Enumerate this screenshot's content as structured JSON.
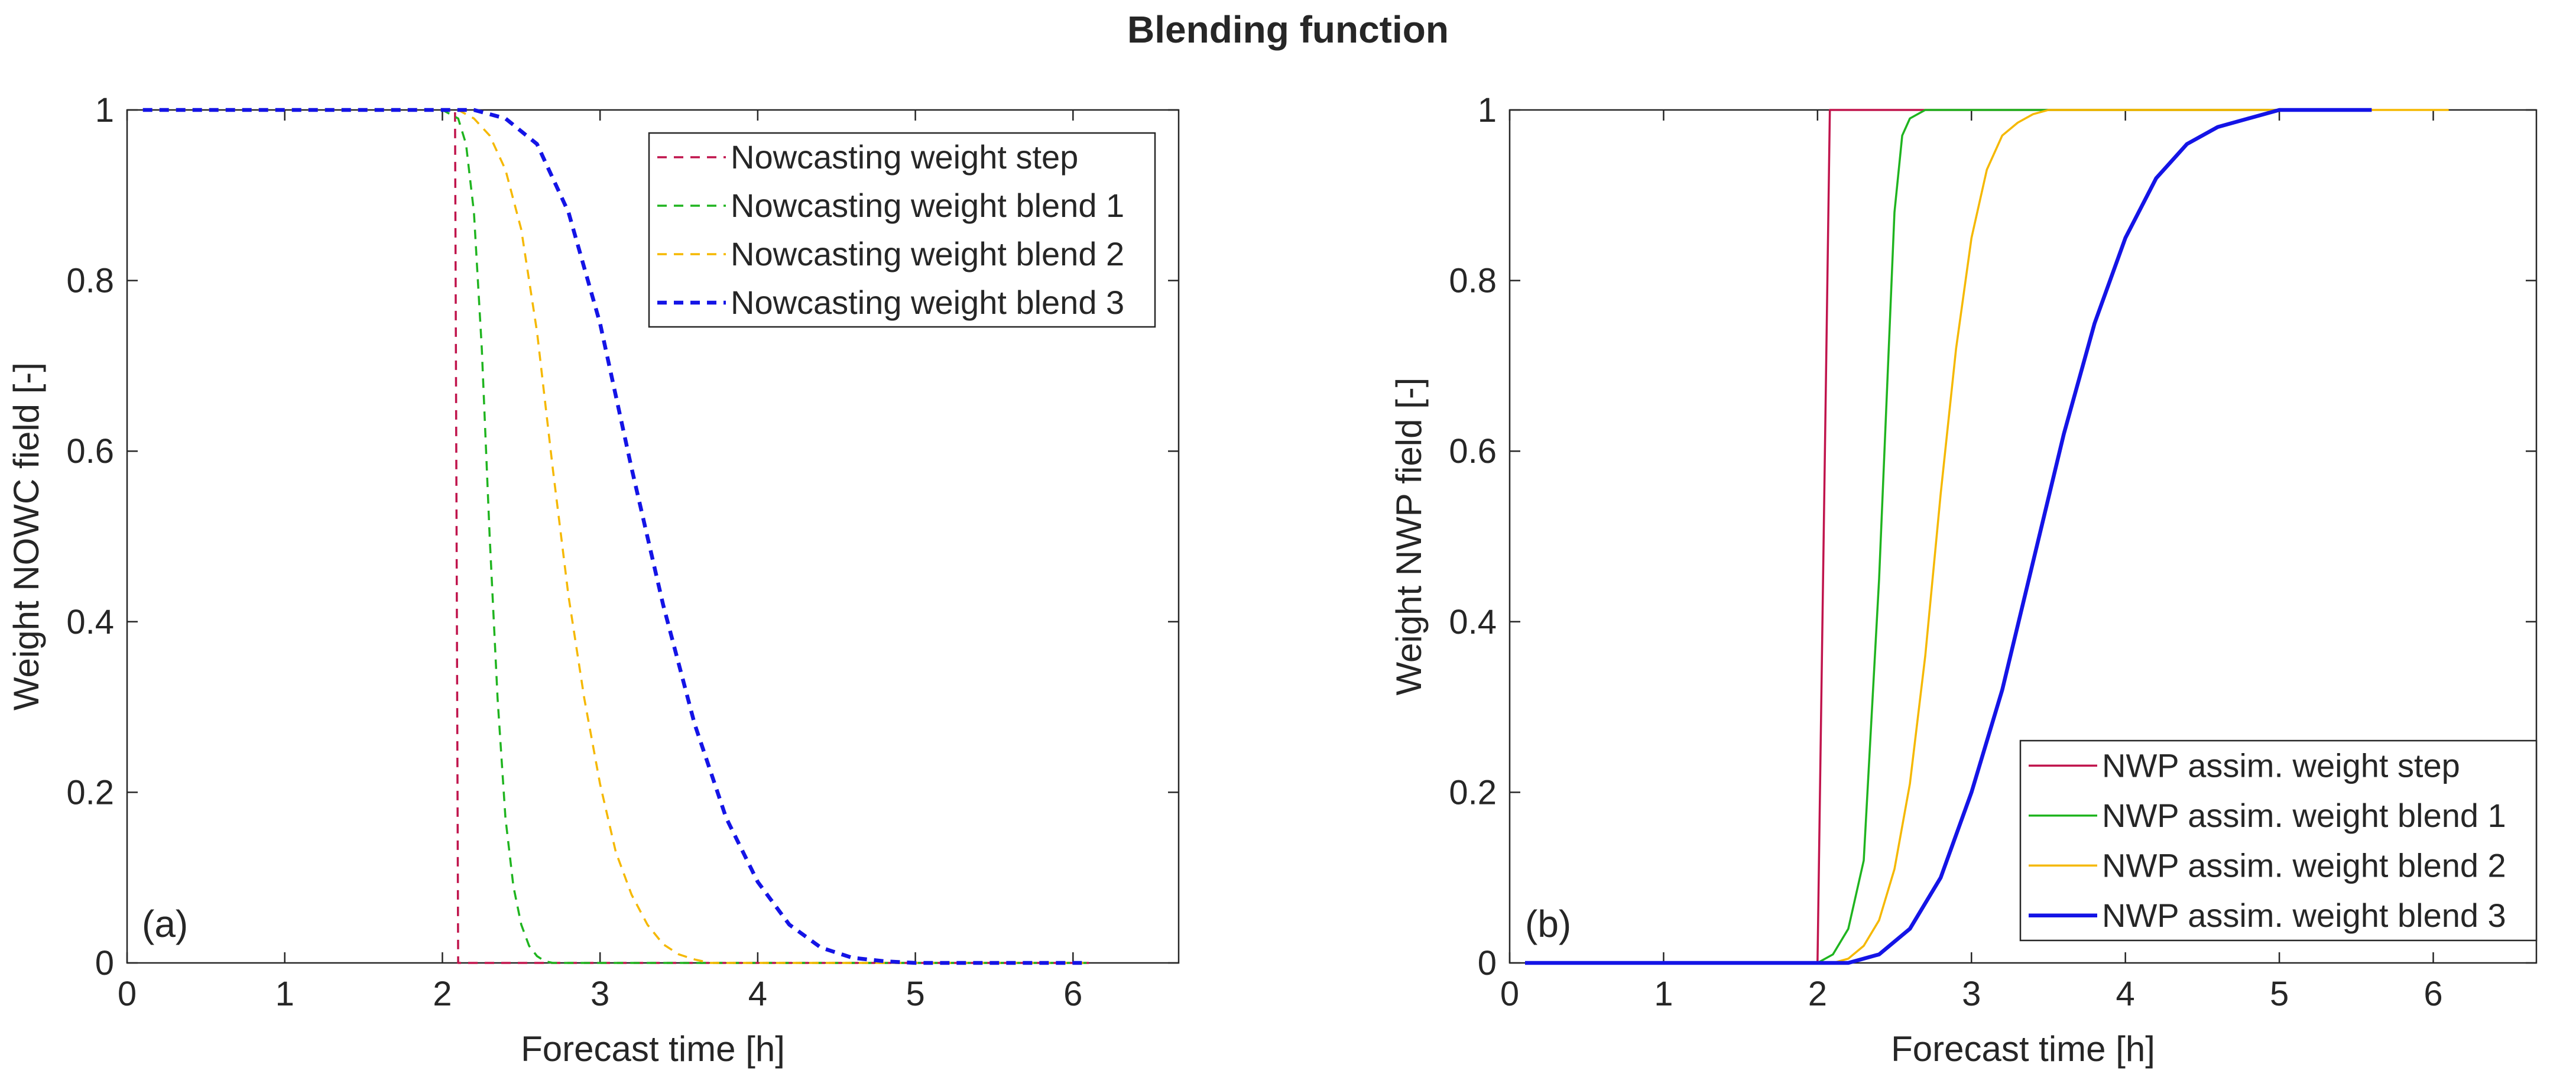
{
  "figure": {
    "title": "Blending function"
  },
  "chart_data": [
    {
      "type": "line",
      "panel_label": "(a)",
      "xlabel": "Forecast  time [h]",
      "ylabel": "Weight NOWC field [-]",
      "xlim": [
        0,
        6.67
      ],
      "ylim": [
        0,
        1
      ],
      "xticks": [
        0,
        1,
        2,
        3,
        4,
        5,
        6
      ],
      "yticks": [
        0,
        0.2,
        0.4,
        0.6,
        0.8,
        1
      ],
      "xtick_labels": [
        "0",
        "1",
        "2",
        "3",
        "4",
        "5",
        "6"
      ],
      "ytick_labels": [
        "0",
        "0.2",
        "0.4",
        "0.6",
        "0.8",
        "1"
      ],
      "grid": false,
      "legend_position": "top-right",
      "series": [
        {
          "name": "Nowcasting weight step",
          "color": "#c0144c",
          "dash": "dashed",
          "width": "thin",
          "x": [
            0.1,
            2.0,
            2.08,
            2.1,
            6.1
          ],
          "y": [
            1,
            1,
            1,
            0,
            0
          ]
        },
        {
          "name": "Nowcasting weight blend 1",
          "color": "#1fb41f",
          "dash": "dashed",
          "width": "thin",
          "x": [
            0.1,
            2.0,
            2.1,
            2.15,
            2.2,
            2.25,
            2.3,
            2.35,
            2.4,
            2.45,
            2.5,
            2.55,
            2.6,
            2.65,
            2.7,
            6.1
          ],
          "y": [
            1,
            1,
            0.99,
            0.96,
            0.88,
            0.72,
            0.5,
            0.31,
            0.17,
            0.09,
            0.045,
            0.02,
            0.008,
            0.002,
            0,
            0
          ]
        },
        {
          "name": "Nowcasting weight blend 2",
          "color": "#f5b800",
          "dash": "dashed",
          "width": "thin",
          "x": [
            0.1,
            2.0,
            2.1,
            2.2,
            2.3,
            2.4,
            2.5,
            2.6,
            2.7,
            2.8,
            2.9,
            3.0,
            3.1,
            3.2,
            3.3,
            3.4,
            3.5,
            3.6,
            3.7,
            6.1
          ],
          "y": [
            1,
            1,
            1,
            0.99,
            0.97,
            0.93,
            0.86,
            0.74,
            0.58,
            0.43,
            0.31,
            0.21,
            0.13,
            0.08,
            0.045,
            0.022,
            0.01,
            0.004,
            0,
            0
          ]
        },
        {
          "name": "Nowcasting weight blend 3",
          "color": "#1414e6",
          "dash": "dashed",
          "width": "thick",
          "x": [
            0.1,
            2.0,
            2.2,
            2.4,
            2.6,
            2.8,
            3.0,
            3.2,
            3.4,
            3.6,
            3.8,
            4.0,
            4.2,
            4.4,
            4.6,
            4.8,
            5.0,
            6.1
          ],
          "y": [
            1,
            1,
            1,
            0.99,
            0.96,
            0.88,
            0.75,
            0.58,
            0.42,
            0.28,
            0.17,
            0.095,
            0.045,
            0.018,
            0.006,
            0.002,
            0,
            0
          ]
        }
      ]
    },
    {
      "type": "line",
      "panel_label": "(b)",
      "xlabel": "Forecast  time [h]",
      "ylabel": "Weight NWP field [-]",
      "xlim": [
        0,
        6.67
      ],
      "ylim": [
        0,
        1
      ],
      "xticks": [
        0,
        1,
        2,
        3,
        4,
        5,
        6
      ],
      "yticks": [
        0,
        0.2,
        0.4,
        0.6,
        0.8,
        1
      ],
      "xtick_labels": [
        "0",
        "1",
        "2",
        "3",
        "4",
        "5",
        "6"
      ],
      "ytick_labels": [
        "0",
        "0.2",
        "0.4",
        "0.6",
        "0.8",
        "1"
      ],
      "grid": false,
      "legend_position": "bottom-right",
      "series": [
        {
          "name": "NWP assim. weight step",
          "color": "#c0144c",
          "dash": "solid",
          "width": "thin",
          "x": [
            0.1,
            2.0,
            2.08,
            5.6
          ],
          "y": [
            0,
            0,
            1,
            1
          ]
        },
        {
          "name": "NWP assim. weight blend 1",
          "color": "#1fb41f",
          "dash": "solid",
          "width": "thin",
          "x": [
            0.1,
            2.0,
            2.1,
            2.2,
            2.3,
            2.4,
            2.5,
            2.55,
            2.6,
            2.7,
            2.8,
            5.6
          ],
          "y": [
            0,
            0,
            0.01,
            0.04,
            0.12,
            0.45,
            0.88,
            0.97,
            0.99,
            1,
            1,
            1
          ]
        },
        {
          "name": "NWP assim. weight blend 2",
          "color": "#f5b800",
          "dash": "solid",
          "width": "thin",
          "x": [
            0.1,
            2.0,
            2.1,
            2.2,
            2.3,
            2.4,
            2.5,
            2.6,
            2.7,
            2.8,
            2.9,
            3.0,
            3.1,
            3.2,
            3.3,
            3.4,
            3.5,
            3.6,
            3.7,
            6.1
          ],
          "y": [
            0,
            0,
            0,
            0.005,
            0.02,
            0.05,
            0.11,
            0.21,
            0.36,
            0.55,
            0.72,
            0.85,
            0.93,
            0.97,
            0.985,
            0.995,
            1,
            1,
            1,
            1
          ]
        },
        {
          "name": "NWP assim. weight blend 3",
          "color": "#1414e6",
          "dash": "solid",
          "width": "thick",
          "x": [
            0.1,
            2.0,
            2.2,
            2.4,
            2.6,
            2.8,
            3.0,
            3.2,
            3.4,
            3.6,
            3.8,
            4.0,
            4.2,
            4.4,
            4.6,
            4.8,
            5.0,
            5.2,
            5.6
          ],
          "y": [
            0,
            0,
            0,
            0.01,
            0.04,
            0.1,
            0.2,
            0.32,
            0.47,
            0.62,
            0.75,
            0.85,
            0.92,
            0.96,
            0.98,
            0.99,
            1,
            1,
            1
          ]
        }
      ]
    }
  ]
}
